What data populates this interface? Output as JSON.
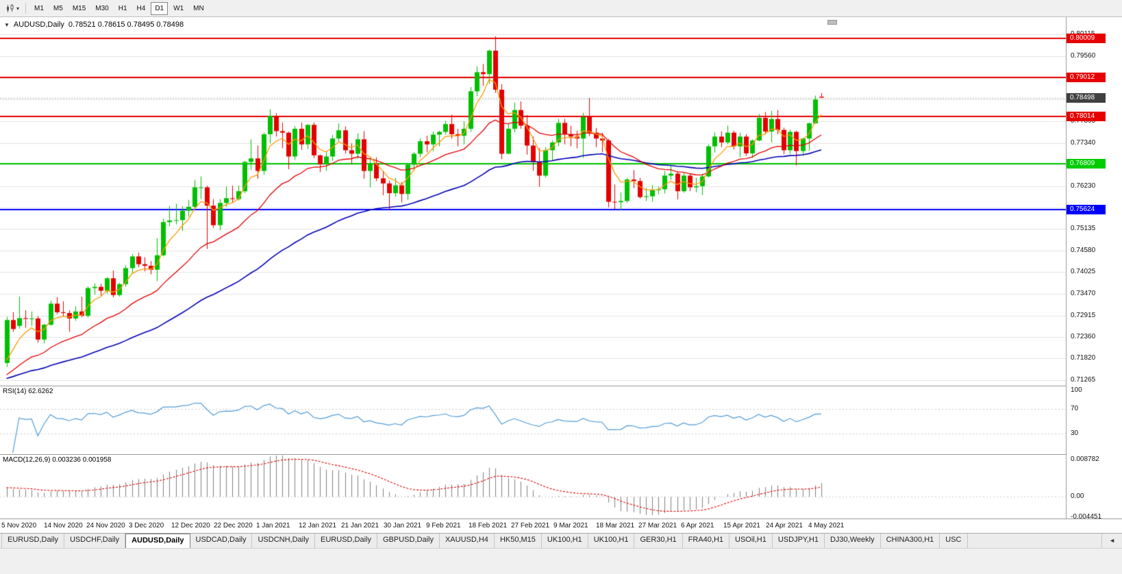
{
  "colors": {
    "bull": "#00bf00",
    "bear": "#e30000",
    "ma_fast": "#ff9900",
    "ma_mid": "#e30000",
    "ma_slow": "#0000b4",
    "level_red": "#e60000",
    "level_green": "#00cc00",
    "level_blue": "#0000ff",
    "rsi_line": "#4f9bd8",
    "macd_hist": "#808080",
    "macd_signal": "#e30000",
    "current_price_bg": "#404040"
  },
  "toolbar": {
    "dropdown_caret": "▾",
    "timeframes": [
      "M1",
      "M5",
      "M15",
      "M30",
      "H1",
      "H4",
      "D1",
      "W1",
      "MN"
    ],
    "active_timeframe": "D1"
  },
  "chart_header": {
    "collapse_icon": "▼",
    "symbol": "AUDUSD,Daily",
    "ohlc": "0.78521 0.78615 0.78495 0.78498"
  },
  "price_axis": {
    "labels": [
      {
        "text": "0.80115",
        "price": 0.80115
      },
      {
        "text": "0.79560",
        "price": 0.7956
      },
      {
        "text": "0.77895",
        "price": 0.77895
      },
      {
        "text": "0.77340",
        "price": 0.7734
      },
      {
        "text": "0.76230",
        "price": 0.7623
      },
      {
        "text": "0.75135",
        "price": 0.75135
      },
      {
        "text": "0.74580",
        "price": 0.7458
      },
      {
        "text": "0.74025",
        "price": 0.74025
      },
      {
        "text": "0.73470",
        "price": 0.7347
      },
      {
        "text": "0.72915",
        "price": 0.72915
      },
      {
        "text": "0.72360",
        "price": 0.7236
      },
      {
        "text": "0.71820",
        "price": 0.7182
      },
      {
        "text": "0.71265",
        "price": 0.71265
      }
    ],
    "gridlines": [
      0.80115,
      0.7956,
      0.79005,
      0.7845,
      0.77895,
      0.7734,
      0.76785,
      0.7623,
      0.75675,
      0.75135,
      0.7458,
      0.74025,
      0.7347,
      0.72915,
      0.7236,
      0.7182,
      0.71265
    ],
    "levels": [
      {
        "text": "0.80009",
        "price": 0.80009,
        "color": "red"
      },
      {
        "text": "0.79012",
        "price": 0.79012,
        "color": "red"
      },
      {
        "text": "0.78014",
        "price": 0.78014,
        "color": "red"
      },
      {
        "text": "0.76809",
        "price": 0.76809,
        "color": "green"
      },
      {
        "text": "0.75624",
        "price": 0.75624,
        "color": "blue"
      }
    ],
    "current_price": {
      "text": "0.78498",
      "price": 0.78498
    }
  },
  "rsi_panel": {
    "label": "RSI(14) 62.6262",
    "period": 14,
    "levels": [
      70,
      30
    ],
    "axis_labels": [
      {
        "text": "100",
        "value": 100
      },
      {
        "text": "70",
        "value": 70
      },
      {
        "text": "30",
        "value": 30
      }
    ]
  },
  "macd_panel": {
    "label": "MACD(12,26,9) 0.003236 0.001958",
    "range": [
      -0.004451,
      0.008782
    ],
    "axis_labels": [
      {
        "text": "0.008782",
        "value": 0.008782
      },
      {
        "text": "0.00",
        "value": 0
      },
      {
        "text": "-0.004451",
        "value": -0.004451
      }
    ]
  },
  "time_axis": {
    "labels": [
      "5 Nov 2020",
      "14 Nov 2020",
      "24 Nov 2020",
      "3 Dec 2020",
      "12 Dec 2020",
      "22 Dec 2020",
      "1 Jan 2021",
      "12 Jan 2021",
      "21 Jan 2021",
      "30 Jan 2021",
      "9 Feb 2021",
      "18 Feb 2021",
      "27 Feb 2021",
      "9 Mar 2021",
      "18 Mar 2021",
      "27 Mar 2021",
      "6 Apr 2021",
      "15 Apr 2021",
      "24 Apr 2021",
      "4 May 2021"
    ]
  },
  "tabs": {
    "items": [
      "EURUSD,Daily",
      "USDCHF,Daily",
      "AUDUSD,Daily",
      "USDCAD,Daily",
      "USDCNH,Daily",
      "EURUSD,Daily",
      "GBPUSD,Daily",
      "XAUUSD,H4",
      "HK50,M15",
      "UK100,H1",
      "UK100,H1",
      "GER30,H1",
      "FRA40,H1",
      "USOil,H1",
      "USDJPY,H1",
      "DJ30,Weekly",
      "CHINA300,H1",
      "USC"
    ],
    "active": "AUDUSD,Daily",
    "scroll_icon": "◄"
  },
  "chart_data": {
    "type": "candlestick",
    "symbol": "AUDUSD",
    "timeframe": "Daily",
    "price_range": [
      0.7112,
      0.8056
    ],
    "ma": {
      "fast_period": 5,
      "mid_period": 20,
      "slow_period": 55,
      "seed": 0.7125
    },
    "ohlc": [
      [
        0.717,
        0.7288,
        0.716,
        0.728
      ],
      [
        0.728,
        0.73,
        0.725,
        0.7257
      ],
      [
        0.7265,
        0.734,
        0.7258,
        0.7285
      ],
      [
        0.7285,
        0.7305,
        0.726,
        0.7283
      ],
      [
        0.7283,
        0.7302,
        0.7265,
        0.7284
      ],
      [
        0.7284,
        0.729,
        0.7222,
        0.723
      ],
      [
        0.723,
        0.727,
        0.722,
        0.7268
      ],
      [
        0.7268,
        0.733,
        0.7265,
        0.7322
      ],
      [
        0.7322,
        0.7339,
        0.7295,
        0.73
      ],
      [
        0.73,
        0.7328,
        0.729,
        0.7298
      ],
      [
        0.7298,
        0.7305,
        0.725,
        0.7284
      ],
      [
        0.7284,
        0.7315,
        0.7278,
        0.7302
      ],
      [
        0.7302,
        0.734,
        0.7287,
        0.7291
      ],
      [
        0.7291,
        0.7366,
        0.7286,
        0.7362
      ],
      [
        0.7362,
        0.7374,
        0.7345,
        0.7365
      ],
      [
        0.7365,
        0.7373,
        0.7343,
        0.7355
      ],
      [
        0.7355,
        0.739,
        0.7347,
        0.7387
      ],
      [
        0.7387,
        0.7407,
        0.7338,
        0.7344
      ],
      [
        0.7344,
        0.7376,
        0.734,
        0.7372
      ],
      [
        0.7372,
        0.742,
        0.7365,
        0.7413
      ],
      [
        0.7413,
        0.7449,
        0.74,
        0.7443
      ],
      [
        0.7443,
        0.7453,
        0.7415,
        0.7423
      ],
      [
        0.7423,
        0.7441,
        0.7405,
        0.7419
      ],
      [
        0.7419,
        0.7431,
        0.7397,
        0.7409
      ],
      [
        0.7409,
        0.749,
        0.738,
        0.7446
      ],
      [
        0.7446,
        0.754,
        0.7443,
        0.7531
      ],
      [
        0.7531,
        0.7572,
        0.752,
        0.7535
      ],
      [
        0.7535,
        0.7578,
        0.7525,
        0.7536
      ],
      [
        0.7536,
        0.7572,
        0.7508,
        0.756
      ],
      [
        0.756,
        0.7588,
        0.7545,
        0.757
      ],
      [
        0.757,
        0.7639,
        0.7565,
        0.762
      ],
      [
        0.762,
        0.7648,
        0.759,
        0.762
      ],
      [
        0.762,
        0.7624,
        0.7462,
        0.7573
      ],
      [
        0.7573,
        0.759,
        0.7516,
        0.7523
      ],
      [
        0.7523,
        0.759,
        0.751,
        0.758
      ],
      [
        0.758,
        0.7622,
        0.757,
        0.7592
      ],
      [
        0.7592,
        0.7624,
        0.758,
        0.759
      ],
      [
        0.759,
        0.7625,
        0.7586,
        0.761
      ],
      [
        0.761,
        0.7688,
        0.7605,
        0.7685
      ],
      [
        0.7685,
        0.7743,
        0.7665,
        0.7694
      ],
      [
        0.7694,
        0.7727,
        0.7642,
        0.7662
      ],
      [
        0.7662,
        0.776,
        0.7652,
        0.7756
      ],
      [
        0.7756,
        0.782,
        0.7733,
        0.7803
      ],
      [
        0.7803,
        0.781,
        0.775,
        0.7764
      ],
      [
        0.7764,
        0.7786,
        0.772,
        0.776
      ],
      [
        0.776,
        0.7763,
        0.7666,
        0.7699
      ],
      [
        0.7699,
        0.7777,
        0.769,
        0.777
      ],
      [
        0.777,
        0.7786,
        0.7716,
        0.773
      ],
      [
        0.773,
        0.7782,
        0.7718,
        0.778
      ],
      [
        0.778,
        0.7786,
        0.7695,
        0.7702
      ],
      [
        0.7702,
        0.7704,
        0.7659,
        0.7679
      ],
      [
        0.7679,
        0.771,
        0.7662,
        0.7699
      ],
      [
        0.7699,
        0.7754,
        0.7688,
        0.7745
      ],
      [
        0.7745,
        0.7784,
        0.7738,
        0.7766
      ],
      [
        0.7766,
        0.7776,
        0.7706,
        0.7715
      ],
      [
        0.7715,
        0.7733,
        0.768,
        0.7706
      ],
      [
        0.7706,
        0.7758,
        0.7693,
        0.7743
      ],
      [
        0.7743,
        0.7764,
        0.7642,
        0.7662
      ],
      [
        0.7662,
        0.7696,
        0.762,
        0.7681
      ],
      [
        0.7681,
        0.7697,
        0.7636,
        0.7643
      ],
      [
        0.7643,
        0.7663,
        0.76,
        0.763
      ],
      [
        0.763,
        0.7637,
        0.7563,
        0.7605
      ],
      [
        0.7605,
        0.7644,
        0.7596,
        0.7625
      ],
      [
        0.7625,
        0.7633,
        0.7581,
        0.7603
      ],
      [
        0.7603,
        0.7682,
        0.7588,
        0.7678
      ],
      [
        0.7678,
        0.771,
        0.7663,
        0.7706
      ],
      [
        0.7706,
        0.7745,
        0.7697,
        0.7738
      ],
      [
        0.7738,
        0.7752,
        0.771,
        0.773
      ],
      [
        0.773,
        0.7763,
        0.7712,
        0.7755
      ],
      [
        0.7755,
        0.7765,
        0.7725,
        0.7762
      ],
      [
        0.7762,
        0.779,
        0.7755,
        0.7782
      ],
      [
        0.7782,
        0.7806,
        0.7745,
        0.7756
      ],
      [
        0.7756,
        0.777,
        0.7725,
        0.7752
      ],
      [
        0.7752,
        0.7789,
        0.773,
        0.777
      ],
      [
        0.777,
        0.7877,
        0.7762,
        0.7866
      ],
      [
        0.7866,
        0.793,
        0.7853,
        0.7915
      ],
      [
        0.7915,
        0.7936,
        0.788,
        0.791
      ],
      [
        0.791,
        0.7973,
        0.7885,
        0.797
      ],
      [
        0.797,
        0.8007,
        0.7862,
        0.787
      ],
      [
        0.787,
        0.7884,
        0.7692,
        0.7706
      ],
      [
        0.7706,
        0.7784,
        0.7705,
        0.777
      ],
      [
        0.777,
        0.7837,
        0.776,
        0.7818
      ],
      [
        0.7818,
        0.784,
        0.777,
        0.7778
      ],
      [
        0.7778,
        0.7805,
        0.7704,
        0.7727
      ],
      [
        0.7727,
        0.775,
        0.7662,
        0.7685
      ],
      [
        0.7685,
        0.772,
        0.7621,
        0.765
      ],
      [
        0.765,
        0.7722,
        0.7646,
        0.7715
      ],
      [
        0.7715,
        0.774,
        0.7688,
        0.7735
      ],
      [
        0.7735,
        0.7795,
        0.7725,
        0.7785
      ],
      [
        0.7785,
        0.7795,
        0.773,
        0.7756
      ],
      [
        0.7756,
        0.7778,
        0.7725,
        0.775
      ],
      [
        0.775,
        0.7765,
        0.772,
        0.7745
      ],
      [
        0.7745,
        0.7811,
        0.7695,
        0.78
      ],
      [
        0.78,
        0.7849,
        0.7751,
        0.776
      ],
      [
        0.776,
        0.7772,
        0.7723,
        0.7745
      ],
      [
        0.7745,
        0.776,
        0.771,
        0.774
      ],
      [
        0.774,
        0.7744,
        0.7569,
        0.7583
      ],
      [
        0.7583,
        0.7627,
        0.7564,
        0.7582
      ],
      [
        0.7582,
        0.7607,
        0.7562,
        0.7585
      ],
      [
        0.7585,
        0.7644,
        0.758,
        0.764
      ],
      [
        0.764,
        0.7664,
        0.7618,
        0.7636
      ],
      [
        0.7636,
        0.7644,
        0.7591,
        0.7595
      ],
      [
        0.7595,
        0.7618,
        0.7585,
        0.7597
      ],
      [
        0.7597,
        0.7626,
        0.7583,
        0.7613
      ],
      [
        0.7613,
        0.7622,
        0.7602,
        0.7615
      ],
      [
        0.7615,
        0.7662,
        0.7604,
        0.765
      ],
      [
        0.765,
        0.7677,
        0.7639,
        0.7655
      ],
      [
        0.7655,
        0.7661,
        0.7589,
        0.761
      ],
      [
        0.761,
        0.7659,
        0.7606,
        0.765
      ],
      [
        0.765,
        0.7656,
        0.761,
        0.762
      ],
      [
        0.762,
        0.7645,
        0.7607,
        0.7623
      ],
      [
        0.7623,
        0.7655,
        0.76,
        0.7648
      ],
      [
        0.7648,
        0.773,
        0.7645,
        0.7725
      ],
      [
        0.7725,
        0.7761,
        0.7709,
        0.775
      ],
      [
        0.775,
        0.7763,
        0.7723,
        0.7735
      ],
      [
        0.7735,
        0.7778,
        0.773,
        0.776
      ],
      [
        0.776,
        0.7765,
        0.7717,
        0.7725
      ],
      [
        0.7725,
        0.776,
        0.7697,
        0.775
      ],
      [
        0.775,
        0.7756,
        0.77,
        0.7707
      ],
      [
        0.7707,
        0.7743,
        0.7695,
        0.774
      ],
      [
        0.774,
        0.7808,
        0.7738,
        0.7798
      ],
      [
        0.7798,
        0.7813,
        0.7758,
        0.7763
      ],
      [
        0.7763,
        0.7816,
        0.7735,
        0.7795
      ],
      [
        0.7795,
        0.7818,
        0.7756,
        0.7767
      ],
      [
        0.7767,
        0.7773,
        0.7705,
        0.7715
      ],
      [
        0.7715,
        0.7768,
        0.7706,
        0.7762
      ],
      [
        0.7762,
        0.7765,
        0.7676,
        0.7713
      ],
      [
        0.7713,
        0.7747,
        0.7701,
        0.7745
      ],
      [
        0.7745,
        0.7786,
        0.7714,
        0.7784
      ],
      [
        0.7784,
        0.7855,
        0.7783,
        0.7845
      ],
      [
        0.78521,
        0.78615,
        0.78495,
        0.78498
      ]
    ]
  }
}
